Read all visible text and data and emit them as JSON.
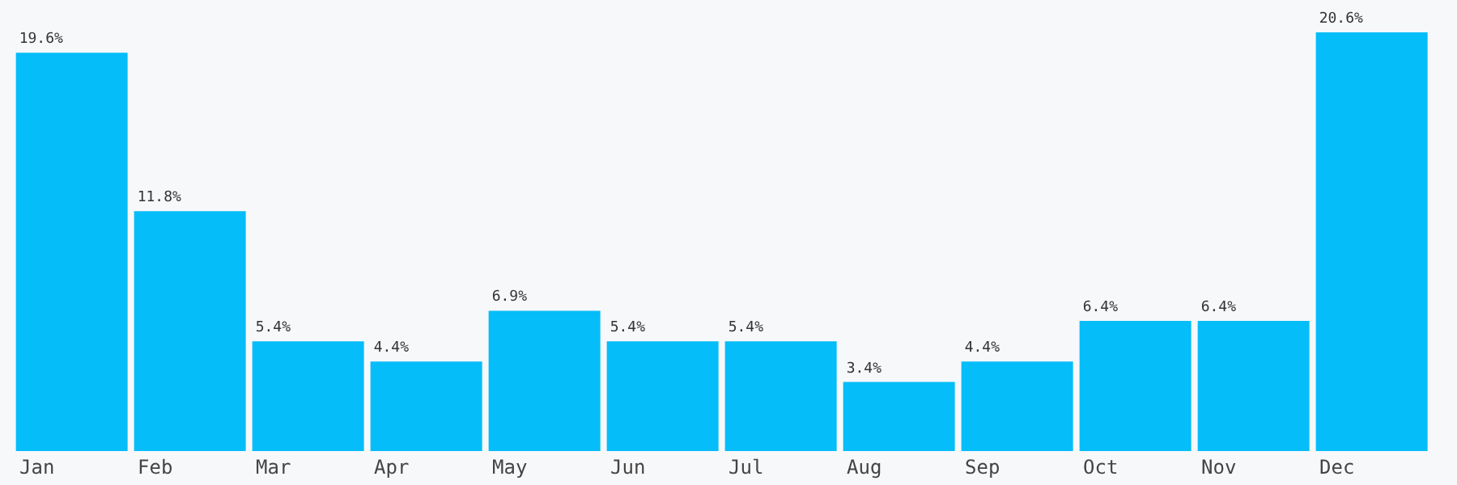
{
  "chart_data": {
    "type": "bar",
    "categories": [
      "Jan",
      "Feb",
      "Mar",
      "Apr",
      "May",
      "Jun",
      "Jul",
      "Aug",
      "Sep",
      "Oct",
      "Nov",
      "Dec"
    ],
    "values": [
      19.6,
      11.8,
      5.4,
      4.4,
      6.9,
      5.4,
      5.4,
      3.4,
      4.4,
      6.4,
      6.4,
      20.6
    ],
    "value_labels": [
      "19.6%",
      "11.8%",
      "5.4%",
      "4.4%",
      "6.9%",
      "5.4%",
      "5.4%",
      "3.4%",
      "4.4%",
      "6.4%",
      "6.4%",
      "20.6%"
    ],
    "color": "#05bdf9",
    "grid": false,
    "legend": false
  }
}
